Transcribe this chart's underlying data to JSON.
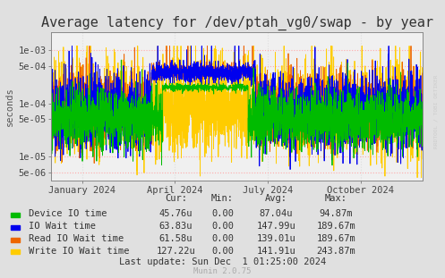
{
  "title": "Average latency for /dev/ptah_vg0/swap - by year",
  "ylabel": "seconds",
  "background_color": "#e0e0e0",
  "plot_background_color": "#f0f0f0",
  "grid_color_major": "#ffaaaa",
  "grid_color_minor": "#dddddd",
  "yticks": [
    5e-06,
    1e-05,
    5e-05,
    0.0001,
    0.0005,
    0.001
  ],
  "ytick_labels": [
    "5e-06",
    "1e-05",
    "5e-05",
    "1e-04",
    "5e-04",
    "1e-03"
  ],
  "ylim_min": 3.5e-06,
  "ylim_max": 0.0022,
  "xtick_labels": [
    "January 2024",
    "April 2024",
    "July 2024",
    "October 2024"
  ],
  "legend_entries": [
    {
      "label": "Device IO time",
      "color": "#00bb00"
    },
    {
      "label": "IO Wait time",
      "color": "#0000ee"
    },
    {
      "label": "Read IO Wait time",
      "color": "#ee6600"
    },
    {
      "label": "Write IO Wait time",
      "color": "#ffcc00"
    }
  ],
  "table_headers": [
    "Cur:",
    "Min:",
    "Avg:",
    "Max:"
  ],
  "table_rows": [
    [
      "Device IO time",
      "45.76u",
      "0.00",
      "87.04u",
      "94.87m"
    ],
    [
      "IO Wait time",
      "63.83u",
      "0.00",
      "147.99u",
      "189.67m"
    ],
    [
      "Read IO Wait time",
      "61.58u",
      "0.00",
      "139.01u",
      "189.67m"
    ],
    [
      "Write IO Wait time",
      "127.22u",
      "0.00",
      "141.91u",
      "243.87m"
    ]
  ],
  "last_update": "Last update: Sun Dec  1 01:25:00 2024",
  "munin_version": "Munin 2.0.75",
  "watermark": "RRDTOOL / TOBI OETIKER",
  "title_fontsize": 11,
  "axis_fontsize": 7.5,
  "table_fontsize": 7.5
}
